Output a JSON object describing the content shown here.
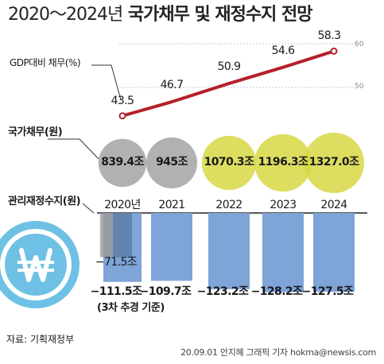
{
  "title": {
    "range": "2020～2024년",
    "main": "국가채무 및 재정수지 전망"
  },
  "gdp_section": {
    "label": "GDP대비 채무(%)",
    "tick_upper": "60",
    "tick_lower": "50"
  },
  "debt_section": {
    "label": "국가채무(원)"
  },
  "balance_section": {
    "label": "관리재정수지(원)",
    "note_2020": "(3차 추경 기준)"
  },
  "source": "자료: 기획재정부",
  "credit": "20.09.01 안지혜 그래픽 기자 hokma@newsis.com",
  "colors": {
    "line": "#b5202a",
    "bubble_past": "#a9a9a9",
    "bubble_future": "#d7d844",
    "bar": "#7ea4d8",
    "bar_dark": "#5c7fad",
    "won_icon": "#6ec1e4"
  },
  "chart_data": [
    {
      "type": "line",
      "name": "GDP대비 채무",
      "unit": "%",
      "categories": [
        "2020",
        "2021",
        "2022",
        "2023",
        "2024"
      ],
      "values": [
        43.5,
        46.7,
        50.9,
        54.6,
        58.3
      ],
      "value_labels": [
        "43.5",
        "46.7",
        "50.9",
        "54.6",
        "58.3"
      ],
      "ylim": [
        40,
        60
      ],
      "reference_ticks": [
        50,
        60
      ]
    },
    {
      "type": "bubble",
      "name": "국가채무",
      "unit": "조원",
      "categories": [
        "2020",
        "2021",
        "2022",
        "2023",
        "2024"
      ],
      "values": [
        839.4,
        945,
        1070.3,
        1196.3,
        1327.0
      ],
      "value_labels": [
        "839.4조",
        "945조",
        "1070.3조",
        "1196.3조",
        "1327.0조"
      ]
    },
    {
      "type": "bar",
      "name": "관리재정수지",
      "unit": "조원",
      "categories": [
        "2020년",
        "2021",
        "2022",
        "2023",
        "2024"
      ],
      "values": [
        -111.5,
        -109.7,
        -123.2,
        -128.2,
        -127.5
      ],
      "value_labels": [
        "−111.5조",
        "−109.7조",
        "−123.2조",
        "−128.2조",
        "−127.5조"
      ],
      "extra_2020": {
        "value": -71.5,
        "label": "−71.5조"
      },
      "ylim": [
        -135,
        0
      ]
    }
  ]
}
